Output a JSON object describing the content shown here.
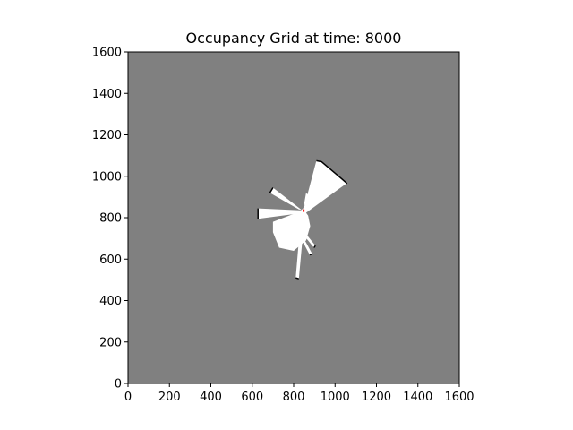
{
  "chart_data": {
    "type": "heatmap",
    "title": "Occupancy Grid at time: 8000",
    "xlabel": "",
    "ylabel": "",
    "xlim": [
      0,
      1600
    ],
    "ylim": [
      0,
      1600
    ],
    "x_ticks": [
      0,
      200,
      400,
      600,
      800,
      1000,
      1200,
      1400,
      1600
    ],
    "y_ticks": [
      0,
      200,
      400,
      600,
      800,
      1000,
      1200,
      1400,
      1600
    ],
    "x_tick_labels": [
      "0",
      "200",
      "400",
      "600",
      "800",
      "1000",
      "1200",
      "1400",
      "1600"
    ],
    "y_tick_labels": [
      "0",
      "200",
      "400",
      "600",
      "800",
      "1000",
      "1200",
      "1400",
      "1600"
    ],
    "grid": false,
    "colors": {
      "unknown": "#808080",
      "free": "#ffffff",
      "occupied": "#000000",
      "robot": "#ff0000"
    },
    "robot_position": [
      848,
      832
    ],
    "free_regions": [
      [
        [
          845,
          830
        ],
        [
          910,
          1075
        ],
        [
          935,
          1070
        ],
        [
          1000,
          1015
        ],
        [
          1055,
          965
        ],
        [
          858,
          822
        ]
      ],
      [
        [
          838,
          830
        ],
        [
          873,
          905
        ],
        [
          860,
          920
        ],
        [
          845,
          835
        ]
      ],
      [
        [
          838,
          838
        ],
        [
          700,
          945
        ],
        [
          685,
          920
        ],
        [
          825,
          840
        ]
      ],
      [
        [
          840,
          835
        ],
        [
          628,
          845
        ],
        [
          628,
          795
        ],
        [
          840,
          822
        ]
      ],
      [
        [
          830,
          830
        ],
        [
          700,
          780
        ],
        [
          700,
          730
        ],
        [
          730,
          655
        ],
        [
          800,
          640
        ],
        [
          860,
          690
        ],
        [
          880,
          760
        ],
        [
          870,
          810
        ],
        [
          845,
          845
        ]
      ],
      [
        [
          845,
          740
        ],
        [
          905,
          665
        ],
        [
          898,
          655
        ],
        [
          835,
          732
        ]
      ],
      [
        [
          838,
          720
        ],
        [
          890,
          625
        ],
        [
          878,
          620
        ],
        [
          828,
          715
        ]
      ],
      [
        [
          825,
          690
        ],
        [
          810,
          510
        ],
        [
          825,
          505
        ],
        [
          842,
          690
        ]
      ]
    ],
    "occupied_edges": [
      [
        [
          910,
          1075
        ],
        [
          935,
          1070
        ],
        [
          1000,
          1015
        ],
        [
          1058,
          965
        ]
      ],
      [
        [
          628,
          845
        ],
        [
          628,
          795
        ]
      ],
      [
        [
          700,
          945
        ],
        [
          685,
          920
        ]
      ],
      [
        [
          810,
          510
        ],
        [
          825,
          505
        ]
      ],
      [
        [
          905,
          665
        ],
        [
          898,
          655
        ]
      ],
      [
        [
          890,
          625
        ],
        [
          878,
          620
        ]
      ]
    ]
  }
}
